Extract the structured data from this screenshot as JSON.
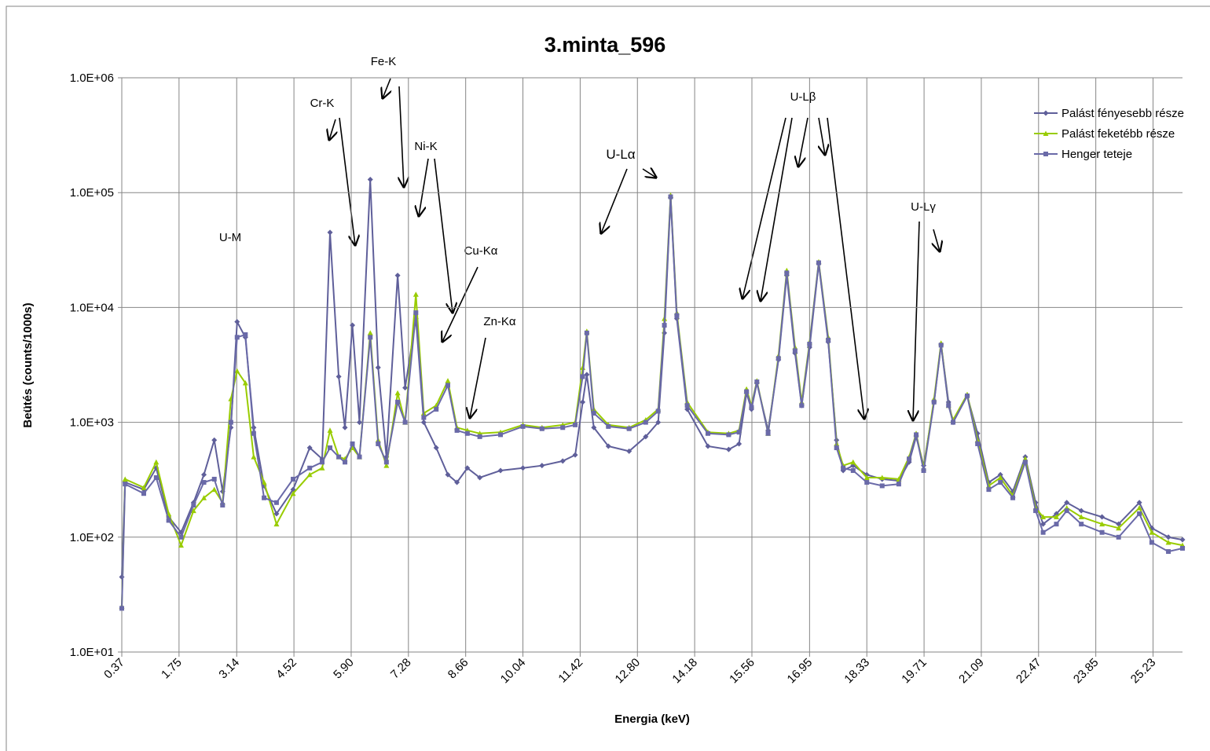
{
  "chart_data": {
    "type": "line",
    "title": "3.minta_596",
    "xlabel": "Energia (keV)",
    "ylabel": "Beütés (counts/1000s)",
    "log_y": true,
    "grid": true,
    "legend": "right",
    "xlim": [
      0.37,
      25.94
    ],
    "xticks": [
      0.37,
      1.75,
      3.14,
      4.52,
      {
        "value": 5.9,
        "label": "5.90"
      },
      7.28,
      8.66,
      10.04,
      11.42,
      {
        "value": 12.8,
        "label": "12.80"
      },
      14.18,
      15.56,
      16.95,
      18.33,
      19.71,
      21.09,
      22.47,
      23.85,
      25.23
    ],
    "ylim": [
      10,
      1000000
    ],
    "yticks": [
      {
        "value": 10,
        "label": "1.0E+01"
      },
      {
        "value": 100,
        "label": "1.0E+02"
      },
      {
        "value": 1000,
        "label": "1.0E+03"
      },
      {
        "value": 10000,
        "label": "1.0E+04"
      },
      {
        "value": 100000,
        "label": "1.0E+05"
      },
      {
        "value": 1000000,
        "label": "1.0E+06"
      }
    ],
    "annotations": [
      "U-M",
      "Cr-K",
      "Fe-K",
      "Ni-K",
      "Cu-Kα",
      "Zn-Kα",
      "U-Lα",
      "U-Lβ",
      "U-Lγ"
    ],
    "x": [
      0.37,
      0.45,
      0.9,
      1.2,
      1.5,
      1.8,
      2.1,
      2.35,
      2.6,
      2.8,
      3.0,
      3.15,
      3.35,
      3.55,
      3.8,
      4.1,
      4.5,
      4.9,
      5.2,
      5.39,
      5.6,
      5.75,
      5.93,
      6.1,
      6.36,
      6.55,
      6.75,
      7.02,
      7.2,
      7.46,
      7.65,
      7.95,
      8.23,
      8.45,
      8.7,
      9.0,
      9.5,
      10.04,
      10.5,
      11.0,
      11.3,
      11.48,
      11.58,
      11.75,
      12.1,
      12.6,
      13.0,
      13.3,
      13.45,
      13.6,
      13.75,
      14.0,
      14.5,
      15.0,
      15.25,
      15.43,
      15.55,
      15.68,
      15.95,
      16.2,
      16.4,
      16.6,
      16.76,
      16.95,
      17.17,
      17.4,
      17.6,
      17.76,
      18.0,
      18.33,
      18.7,
      19.1,
      19.35,
      19.52,
      19.7,
      19.95,
      20.12,
      20.3,
      20.41,
      20.75,
      21.0,
      21.27,
      21.55,
      21.85,
      22.15,
      22.4,
      22.58,
      22.9,
      23.15,
      23.5,
      24.0,
      24.4,
      24.9,
      25.2,
      25.6,
      25.94
    ],
    "series": [
      {
        "name": "Palást fényesebb része",
        "color": "#5f5f9a",
        "marker": "diamond",
        "values": [
          45,
          300,
          260,
          400,
          150,
          110,
          200,
          350,
          700,
          250,
          900,
          7500,
          5500,
          900,
          280,
          160,
          260,
          600,
          480,
          45000,
          2500,
          900,
          7000,
          1000,
          130000,
          3000,
          500,
          19000,
          2000,
          8000,
          1000,
          600,
          350,
          300,
          400,
          330,
          380,
          400,
          420,
          460,
          520,
          1500,
          2600,
          900,
          620,
          560,
          750,
          1000,
          6000,
          90000,
          8000,
          1300,
          620,
          580,
          650,
          1800,
          1300,
          2200,
          850,
          3500,
          19000,
          4000,
          1400,
          4500,
          24000,
          5000,
          700,
          380,
          420,
          350,
          320,
          310,
          450,
          750,
          420,
          1500,
          4800,
          1500,
          1000,
          1700,
          800,
          300,
          350,
          250,
          500,
          200,
          130,
          160,
          200,
          170,
          150,
          130,
          200,
          120,
          100,
          95
        ]
      },
      {
        "name": "Palást feketébb része",
        "color": "#99cc00",
        "marker": "triangle",
        "values": [
          25,
          320,
          270,
          450,
          160,
          85,
          170,
          220,
          260,
          200,
          1600,
          2800,
          2200,
          500,
          300,
          130,
          240,
          350,
          400,
          850,
          500,
          480,
          600,
          500,
          6000,
          700,
          420,
          1800,
          1000,
          13000,
          1200,
          1400,
          2300,
          900,
          850,
          800,
          820,
          950,
          900,
          950,
          1000,
          3000,
          6200,
          1300,
          950,
          900,
          1050,
          1300,
          8000,
          95000,
          9000,
          1500,
          820,
          800,
          850,
          1950,
          1400,
          2300,
          800,
          3800,
          21000,
          4500,
          1500,
          5000,
          25000,
          5500,
          650,
          420,
          450,
          330,
          330,
          320,
          500,
          800,
          400,
          1600,
          4900,
          1400,
          1050,
          1750,
          700,
          280,
          330,
          230,
          480,
          180,
          150,
          150,
          180,
          150,
          130,
          120,
          180,
          110,
          90,
          85
        ]
      },
      {
        "name": "Henger teteje",
        "color": "#6a6aa8",
        "marker": "square",
        "values": [
          24,
          290,
          240,
          330,
          140,
          100,
          190,
          300,
          320,
          190,
          1000,
          5500,
          5800,
          800,
          220,
          200,
          320,
          400,
          450,
          600,
          500,
          450,
          650,
          500,
          5500,
          650,
          450,
          1500,
          1000,
          9000,
          1100,
          1300,
          2100,
          850,
          800,
          750,
          780,
          920,
          880,
          900,
          950,
          2500,
          6000,
          1200,
          920,
          880,
          1000,
          1250,
          7000,
          92000,
          8500,
          1400,
          800,
          780,
          820,
          1850,
          1350,
          2250,
          800,
          3600,
          20000,
          4200,
          1400,
          4800,
          24500,
          5200,
          600,
          400,
          380,
          300,
          280,
          290,
          480,
          780,
          380,
          1500,
          4700,
          1400,
          1000,
          1700,
          650,
          260,
          300,
          220,
          450,
          170,
          110,
          130,
          170,
          130,
          110,
          100,
          160,
          90,
          75,
          80
        ]
      }
    ]
  }
}
